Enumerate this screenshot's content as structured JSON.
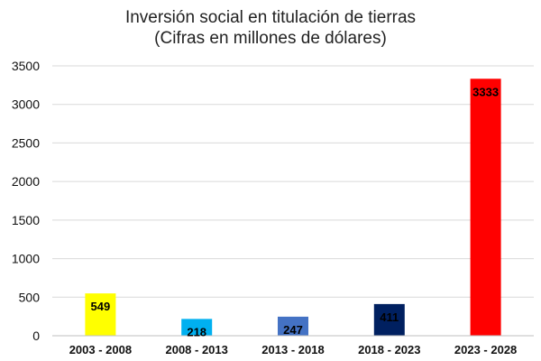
{
  "chart_data": {
    "type": "bar",
    "title": "Inversión social en titulación de tierras",
    "subtitle": "(Cifras en millones de dólares)",
    "xlabel": "",
    "ylabel": "",
    "ylim": [
      0,
      3500
    ],
    "y_ticks": [
      0,
      500,
      1000,
      1500,
      2000,
      2500,
      3000,
      3500
    ],
    "grid": true,
    "legend": "none",
    "categories": [
      "2003 - 2008",
      "2008 - 2013",
      "2013 - 2018",
      "2018 - 2023",
      "2023 - 2028"
    ],
    "values": [
      549,
      218,
      247,
      411,
      3333
    ],
    "bar_colors": [
      "#FFFF00",
      "#00B0F0",
      "#4472C4",
      "#002060",
      "#FF0000"
    ],
    "label_colors": [
      "#000000",
      "#000000",
      "#000000",
      "#000000",
      "#000000"
    ],
    "grid_color": "#D9D9D9",
    "axis_color": "#BFBFBF"
  }
}
